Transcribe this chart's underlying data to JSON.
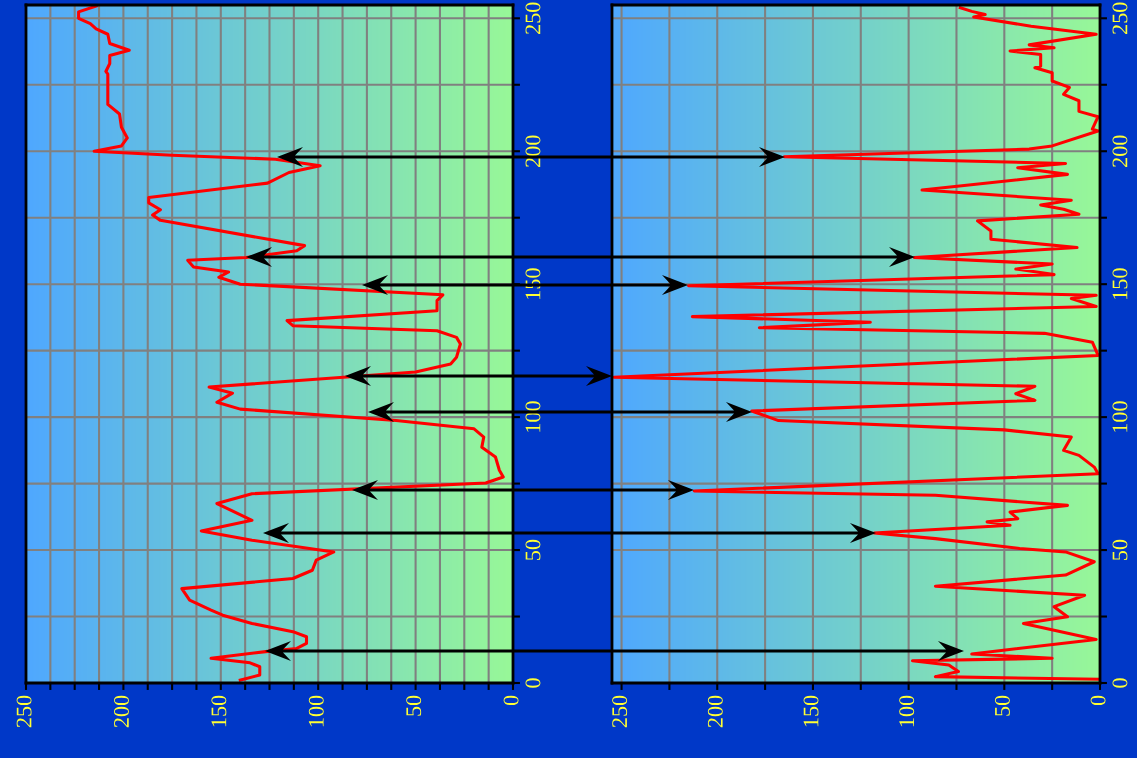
{
  "chart_data": [
    {
      "type": "line",
      "orientation": "horizontal",
      "color": "#ff0000",
      "grid": true,
      "x": [
        254.6,
        252.4,
        250,
        248,
        246,
        244,
        240.5,
        238,
        236,
        233,
        230,
        229,
        217.6,
        214,
        209,
        205,
        202,
        200,
        198.5,
        197,
        194.5,
        192,
        188,
        182.6,
        180.6,
        178,
        176,
        174,
        164.5,
        162.6,
        160,
        159,
        156.5,
        154.6,
        152.6,
        150,
        146,
        143.8,
        140,
        136.3,
        134.4,
        132.5,
        130,
        127.5,
        122.5,
        120,
        117,
        111.3,
        109,
        105.6,
        103,
        98.7,
        95.6,
        92.5,
        88.7,
        85,
        80,
        77.5,
        75.2,
        71.2,
        67.5,
        61.2,
        57.2,
        53.7,
        49.3,
        46.2,
        42.4,
        39.3,
        35.5,
        31.2,
        27.4,
        25.5,
        22.4,
        19.3,
        17.4,
        14.9,
        13,
        11.8,
        9.3,
        7.6,
        6.1,
        3,
        1.1
      ],
      "values": [
        214,
        223,
        223,
        217,
        214,
        208,
        207,
        197,
        207,
        207,
        209,
        208,
        208,
        202,
        201,
        198,
        201,
        215,
        175,
        122,
        99,
        115,
        126,
        187,
        187,
        181,
        185,
        181,
        107,
        111,
        137,
        167,
        164,
        146,
        151,
        140,
        36,
        39,
        39,
        116,
        113,
        39,
        29,
        27,
        29,
        32,
        50,
        156,
        144,
        152,
        140,
        60,
        20,
        15,
        16,
        9,
        7,
        5,
        14,
        134,
        152,
        134,
        160,
        134,
        92,
        101,
        103,
        113,
        170,
        166,
        155,
        149,
        134,
        113,
        106,
        106,
        111,
        127,
        155,
        135,
        130,
        130,
        140
      ],
      "xlim": [
        250,
        0
      ],
      "xticks": [
        0,
        {
          "value": 12.5,
          "label": null
        },
        50,
        {
          "value": 37.5,
          "label": null
        },
        {
          "value": 25,
          "label": null
        },
        {
          "value": 62.5,
          "label": null
        },
        {
          "value": 75,
          "label": null
        },
        {
          "value": 87.5,
          "label": null
        },
        100,
        {
          "value": 112.5,
          "label": null
        },
        {
          "value": 125,
          "label": null
        },
        {
          "value": 137.5,
          "label": null
        },
        150,
        {
          "value": 162.5,
          "label": null
        },
        {
          "value": 175,
          "label": null
        },
        {
          "value": 187.5,
          "label": null
        },
        200,
        {
          "value": 212.5,
          "label": null
        },
        {
          "value": 225,
          "label": null
        },
        {
          "value": 237.5,
          "label": null
        },
        250
      ],
      "ylim": [
        0,
        255
      ],
      "yticks": [
        0,
        {
          "value": 25,
          "label": null
        },
        50,
        {
          "value": 75,
          "label": null
        },
        100,
        {
          "value": 125,
          "label": null
        },
        150,
        {
          "value": 175,
          "label": null
        },
        200,
        {
          "value": 225,
          "label": null
        },
        250
      ]
    },
    {
      "type": "line",
      "orientation": "horizontal",
      "color": "#ff0000",
      "grid": true,
      "x": [
        254,
        252.6,
        251.4,
        250.5,
        247,
        244,
        240,
        238.9,
        237.7,
        236.4,
        232,
        231.4,
        229.5,
        226.4,
        224,
        221.4,
        219,
        215,
        213,
        208.3,
        207.6,
        202,
        200.8,
        197.9,
        195.4,
        193.8,
        191.3,
        185.4,
        181.6,
        179.8,
        178.2,
        176.3,
        173.8,
        170,
        166.9,
        163.8,
        160,
        157.6,
        155.7,
        153.6,
        149.4,
        145.8,
        144.6,
        141.6,
        137.8,
        135.7,
        133.6,
        131.5,
        128.2,
        123.2,
        115,
        111.6,
        108.8,
        106.3,
        102.3,
        98.7,
        95.2,
        92.5,
        87.5,
        85.6,
        81.2,
        78.7,
        72.2,
        70.6,
        66.8,
        64.3,
        61.8,
        60.6,
        59.3,
        56.4,
        54.3,
        50.6,
        49.3,
        45.6,
        40.6,
        36.4,
        33,
        28.7,
        24.9,
        22.4,
        16.4,
        10.9,
        9.3,
        8.4,
        6.8,
        4.3,
        2.4,
        1.4
      ],
      "values": [
        73,
        67,
        60,
        66,
        36,
        2,
        37,
        24,
        47,
        31,
        31,
        34,
        25,
        25,
        16,
        19,
        11,
        11,
        1,
        4,
        1,
        25,
        37,
        165,
        18,
        43,
        17,
        93,
        15,
        31,
        19,
        11,
        64,
        57,
        57,
        12,
        97,
        25,
        44,
        24,
        215,
        2,
        15,
        2,
        213,
        120,
        178,
        29,
        4,
        1,
        254,
        34,
        44,
        34,
        182,
        168,
        50,
        15,
        19,
        11,
        3,
        1,
        212,
        86,
        17,
        47,
        43,
        59,
        47,
        118,
        86,
        42,
        18,
        3,
        18,
        86,
        8,
        24,
        17,
        40,
        2,
        67,
        25,
        98,
        79,
        74,
        86,
        1
      ],
      "xlim": [
        255,
        0
      ],
      "xticks": [
        0,
        {
          "value": 25,
          "label": null
        },
        50,
        {
          "value": 75,
          "label": null
        },
        100,
        {
          "value": 125,
          "label": null
        },
        150,
        {
          "value": 175,
          "label": null
        },
        200,
        {
          "value": 225,
          "label": null
        },
        250
      ],
      "ylim": [
        0,
        255
      ],
      "yticks": [
        0,
        {
          "value": 25,
          "label": null
        },
        50,
        {
          "value": 75,
          "label": null
        },
        100,
        {
          "value": 125,
          "label": null
        },
        150,
        {
          "value": 175,
          "label": null
        },
        200,
        {
          "value": 225,
          "label": null
        },
        250
      ]
    }
  ]
}
